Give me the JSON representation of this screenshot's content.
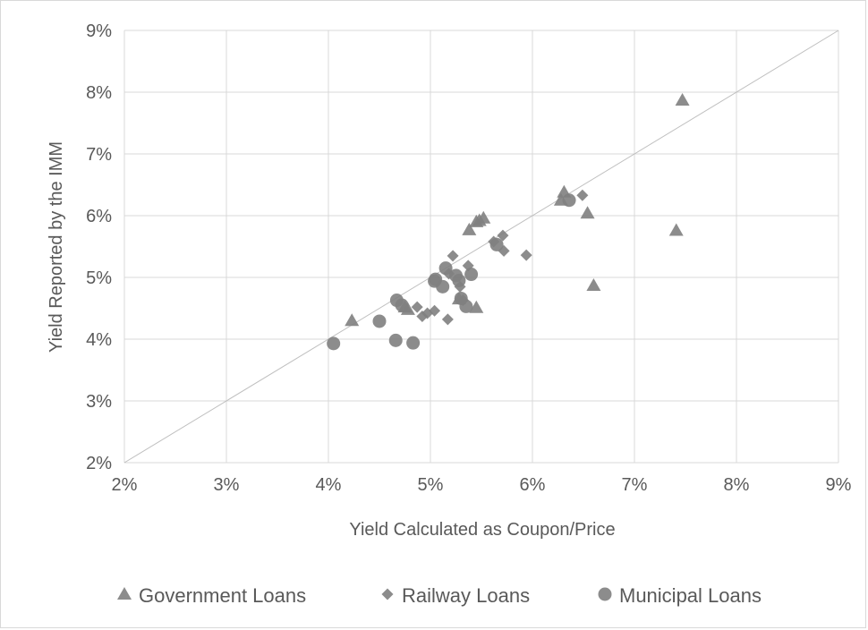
{
  "chart_data": {
    "type": "scatter",
    "title": "",
    "xlabel": "Yield Calculated as Coupon/Price",
    "ylabel": "Yield Reported by the IMM",
    "xlim": [
      0.02,
      0.09
    ],
    "ylim": [
      0.02,
      0.09
    ],
    "x_ticks": [
      0.02,
      0.03,
      0.04,
      0.05,
      0.06,
      0.07,
      0.08,
      0.09
    ],
    "y_ticks": [
      0.02,
      0.03,
      0.04,
      0.05,
      0.06,
      0.07,
      0.08,
      0.09
    ],
    "x_tick_labels": [
      "2%",
      "3%",
      "4%",
      "5%",
      "6%",
      "7%",
      "8%",
      "9%"
    ],
    "y_tick_labels": [
      "2%",
      "3%",
      "4%",
      "5%",
      "6%",
      "7%",
      "8%",
      "9%"
    ],
    "grid": true,
    "reference_line": "y = x",
    "legend_position": "bottom",
    "colors": {
      "marker": "#808080",
      "grid": "#d9d9d9",
      "reference": "#bfbfbf",
      "text": "#595959"
    },
    "series": [
      {
        "name": "Government Loans",
        "marker": "triangle",
        "points": [
          [
            0.0423,
            0.043
          ],
          [
            0.0475,
            0.0452
          ],
          [
            0.0478,
            0.0448
          ],
          [
            0.0538,
            0.0577
          ],
          [
            0.0545,
            0.059
          ],
          [
            0.0548,
            0.0592
          ],
          [
            0.0552,
            0.0596
          ],
          [
            0.0628,
            0.0625
          ],
          [
            0.0631,
            0.0638
          ],
          [
            0.0654,
            0.0604
          ],
          [
            0.066,
            0.0487
          ],
          [
            0.0741,
            0.0576
          ],
          [
            0.0747,
            0.0787
          ],
          [
            0.0545,
            0.0451
          ],
          [
            0.0528,
            0.0465
          ]
        ]
      },
      {
        "name": "Railway Loans",
        "marker": "diamond",
        "points": [
          [
            0.0487,
            0.0452
          ],
          [
            0.0492,
            0.0437
          ],
          [
            0.0497,
            0.0442
          ],
          [
            0.0504,
            0.0446
          ],
          [
            0.0517,
            0.0432
          ],
          [
            0.0518,
            0.0506
          ],
          [
            0.0522,
            0.0535
          ],
          [
            0.0529,
            0.0485
          ],
          [
            0.0537,
            0.0519
          ],
          [
            0.0562,
            0.0558
          ],
          [
            0.0571,
            0.0568
          ],
          [
            0.0572,
            0.0543
          ],
          [
            0.0594,
            0.0536
          ],
          [
            0.0649,
            0.0633
          ],
          [
            0.0532,
            0.0463
          ]
        ]
      },
      {
        "name": "Municipal Loans",
        "marker": "circle",
        "points": [
          [
            0.0405,
            0.0393
          ],
          [
            0.045,
            0.0429
          ],
          [
            0.0466,
            0.0398
          ],
          [
            0.0467,
            0.0463
          ],
          [
            0.0472,
            0.0455
          ],
          [
            0.0483,
            0.0394
          ],
          [
            0.0504,
            0.0494
          ],
          [
            0.0505,
            0.0497
          ],
          [
            0.0512,
            0.0485
          ],
          [
            0.0515,
            0.0515
          ],
          [
            0.0525,
            0.0503
          ],
          [
            0.0528,
            0.0495
          ],
          [
            0.053,
            0.0466
          ],
          [
            0.0535,
            0.0453
          ],
          [
            0.054,
            0.0505
          ],
          [
            0.0565,
            0.0553
          ],
          [
            0.0636,
            0.0625
          ]
        ]
      }
    ]
  }
}
